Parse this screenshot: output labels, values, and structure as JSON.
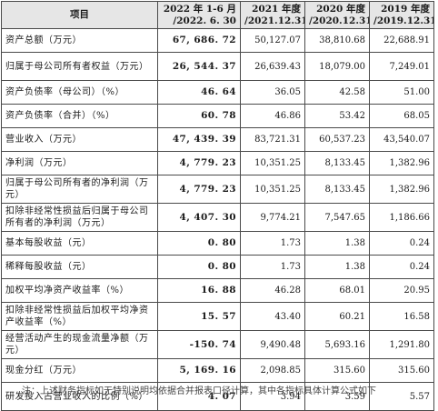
{
  "table": {
    "headers": [
      "项目",
      "2022 年 1-6 月\n/2022. 6. 30",
      "2021 年度\n/2021.12.31",
      "2020 年度\n/2020.12.31",
      "2019 年度\n/2019.12.31"
    ],
    "rows": [
      {
        "label": "资产总额（万元）",
        "values": [
          "67, 686. 72",
          "50,127.07",
          "38,810.68",
          "22,688.91"
        ]
      },
      {
        "label": "归属于母公司所有者权益（万元）",
        "values": [
          "26, 544. 37",
          "26,639.43",
          "18,079.00",
          "7,249.01"
        ]
      },
      {
        "label": "资产负债率（母公司）（%）",
        "values": [
          "46. 64",
          "36.05",
          "42.58",
          "51.00"
        ]
      },
      {
        "label": "资产负债率（合并）（%）",
        "values": [
          "60. 78",
          "46.86",
          "53.42",
          "68.05"
        ]
      },
      {
        "label": "营业收入（万元）",
        "values": [
          "47, 439. 39",
          "83,721.31",
          "60,537.23",
          "43,540.07"
        ]
      },
      {
        "label": "净利润（万元）",
        "values": [
          "4, 779. 23",
          "10,351.25",
          "8,133.45",
          "1,382.96"
        ]
      },
      {
        "label": "归属于母公司所有者的净利润（万元）",
        "values": [
          "4, 779. 23",
          "10,351.25",
          "8,133.45",
          "1,382.96"
        ]
      },
      {
        "label": "扣除非经常性损益后归属于母公司所有者的净利润（万元）",
        "values": [
          "4, 407. 30",
          "9,774.21",
          "7,547.65",
          "1,186.66"
        ]
      },
      {
        "label": "基本每股收益（元）",
        "values": [
          "0. 80",
          "1.73",
          "1.38",
          "0.24"
        ]
      },
      {
        "label": "稀释每股收益（元）",
        "values": [
          "0. 80",
          "1.73",
          "1.38",
          "0.24"
        ]
      },
      {
        "label": "加权平均净资产收益率（%）",
        "values": [
          "16. 88",
          "46.28",
          "68.01",
          "20.95"
        ]
      },
      {
        "label": "扣除非经常性损益后加权平均净资产收益率（%）",
        "values": [
          "15. 57",
          "43.40",
          "60.21",
          "16.58"
        ]
      },
      {
        "label": "经营活动产生的现金流量净额（万元）",
        "values": [
          "-150. 74",
          "9,490.48",
          "5,693.16",
          "1,291.80"
        ]
      },
      {
        "label": "现金分红（万元）",
        "values": [
          "5, 169. 16",
          "2,098.85",
          "315.60",
          "315.60"
        ]
      },
      {
        "label": "研发投入占营业收入的比例（%）",
        "values": [
          "4. 07",
          "3.94",
          "3.59",
          "5.57"
        ]
      }
    ]
  },
  "footnote": "注：上述财务指标如无特别说明均依据合并报表口径计算，其中各指标具体计算公式如下"
}
